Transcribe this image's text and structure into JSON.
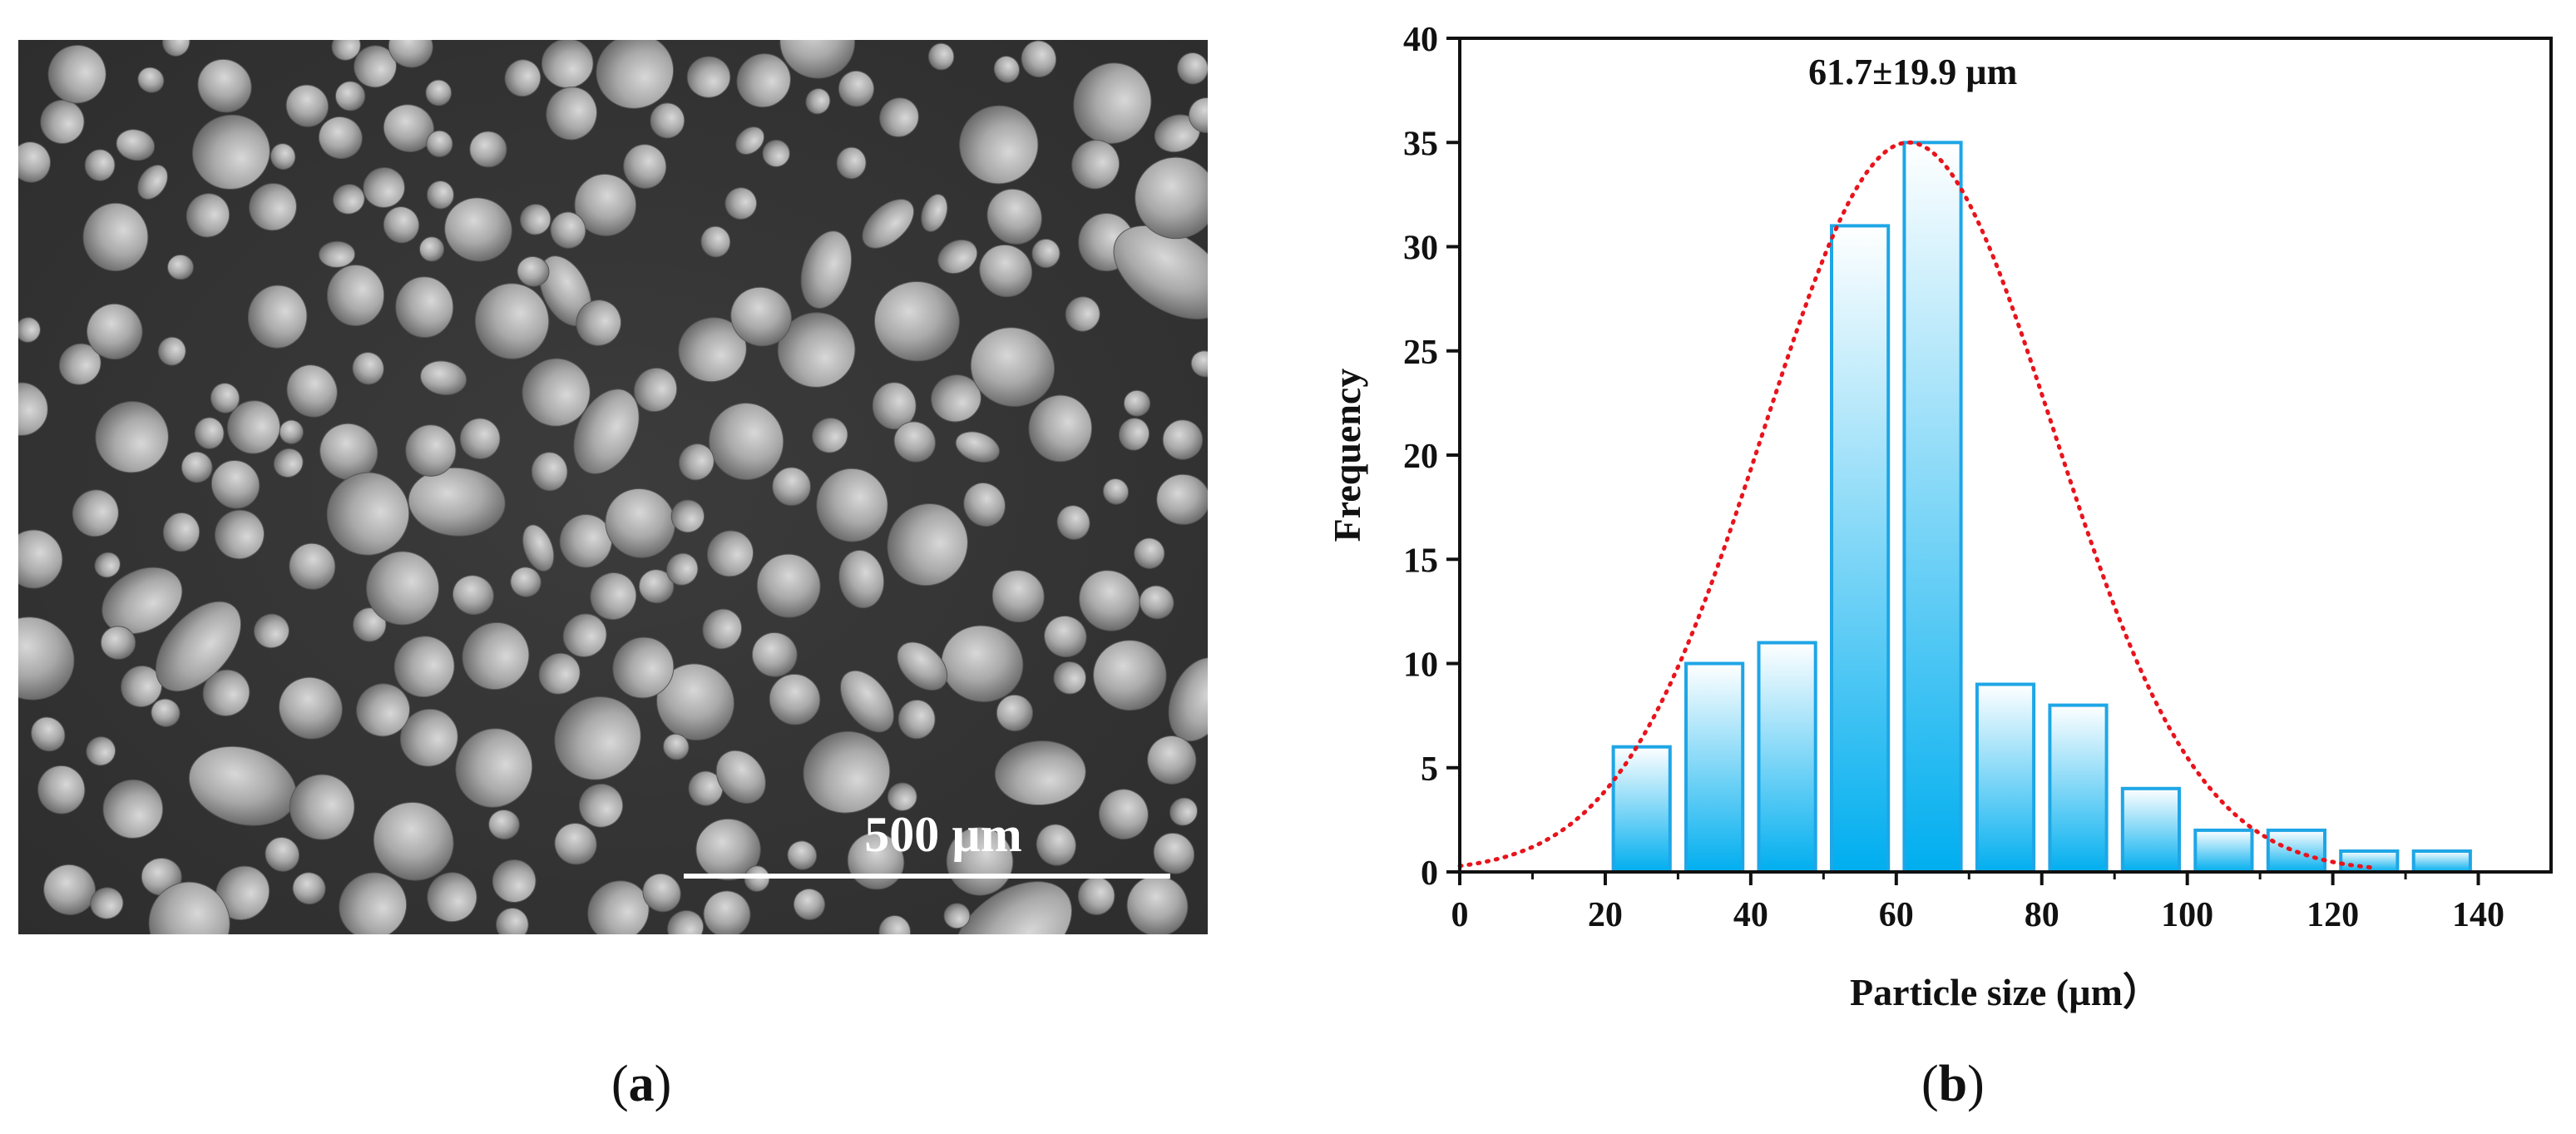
{
  "figure": {
    "label_a": "a",
    "label_b": "b"
  },
  "sem": {
    "scale_bar_label": "500 µm"
  },
  "chart_data": {
    "type": "bar",
    "xlabel": "Particle size (µm）",
    "ylabel": "Frequency",
    "annotation": "61.7±19.9 µm",
    "x_ticks": [
      0,
      20,
      40,
      60,
      80,
      100,
      120,
      140
    ],
    "y_ticks": [
      0,
      5,
      10,
      15,
      20,
      25,
      30,
      35,
      40
    ],
    "xlim": [
      0,
      150
    ],
    "ylim": [
      0,
      40
    ],
    "bin_width": 10,
    "bin_centers": [
      25,
      35,
      45,
      55,
      65,
      75,
      85,
      95,
      105,
      115,
      125,
      135
    ],
    "values": [
      6,
      10,
      11,
      31,
      35,
      9,
      8,
      4,
      2,
      2,
      1,
      1
    ],
    "fit": {
      "type": "normal",
      "mean": 61.7,
      "std": 19.9,
      "peak": 35,
      "x_range": [
        0,
        126
      ]
    },
    "colors": {
      "bar_edge": "#1ea6e6",
      "bar_fill_top": "#ffffff",
      "bar_fill_bottom": "#00aeef",
      "fit_line": "#e8141c"
    },
    "grid": false,
    "legend": "none"
  }
}
